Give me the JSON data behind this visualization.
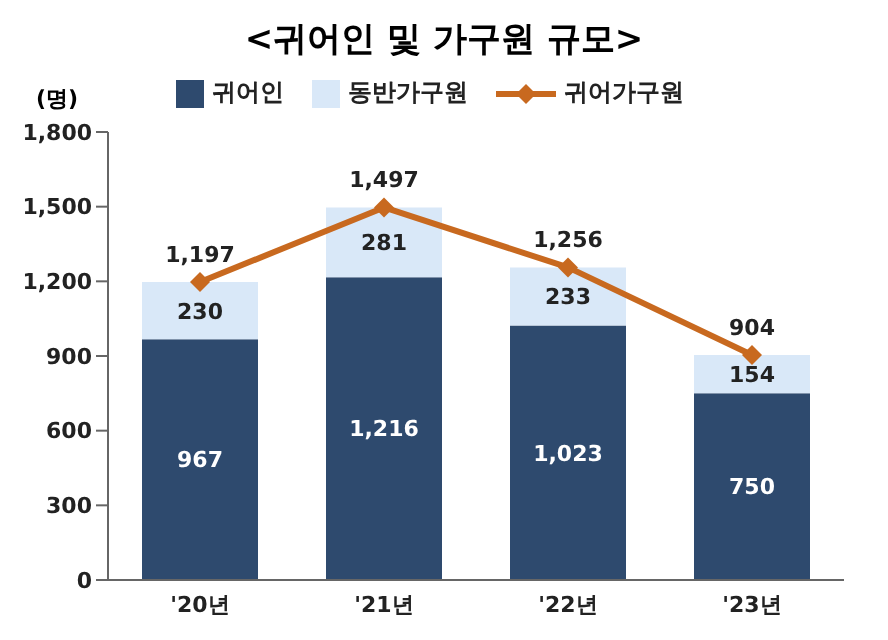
{
  "chart_data": {
    "type": "bar",
    "title": "<귀어인 및 가구원 규모>",
    "ylabel": "(명)",
    "categories": [
      "'20년",
      "'21년",
      "'22년",
      "'23년"
    ],
    "stacked": true,
    "series": [
      {
        "name": "귀어인",
        "color": "#2e4a6e",
        "values": [
          967,
          1216,
          1023,
          750
        ],
        "value_labels": [
          "967",
          "1,216",
          "1,023",
          "750"
        ]
      },
      {
        "name": "동반가구원",
        "color": "#d9e8f8",
        "values": [
          230,
          281,
          233,
          154
        ],
        "value_labels": [
          "230",
          "281",
          "233",
          "154"
        ]
      },
      {
        "name": "귀어가구원",
        "type": "line",
        "color": "#c8691f",
        "values": [
          1197,
          1497,
          1256,
          904
        ],
        "value_labels": [
          "1,197",
          "1,497",
          "1,256",
          "904"
        ]
      }
    ],
    "ylim": [
      0,
      1800
    ],
    "yticks": [
      0,
      300,
      600,
      900,
      {
        "value": 1200,
        "label": "1,200"
      },
      {
        "value": 1500,
        "label": "1,500"
      },
      {
        "value": 1800,
        "label": "1,800"
      }
    ],
    "legend": "top",
    "marker": "diamond"
  }
}
